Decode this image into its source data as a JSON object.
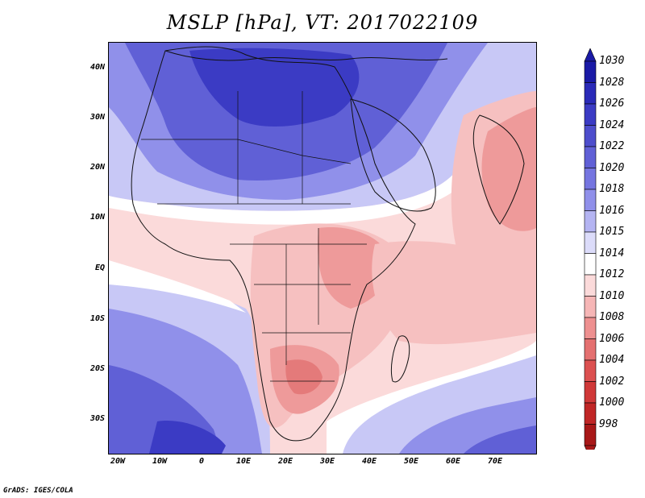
{
  "title": "MSLP [hPa], VT: 2017022109",
  "credit": "GrADS: IGES/COLA",
  "latitude_ticks": [
    "40N",
    "30N",
    "20N",
    "10N",
    "EQ",
    "10S",
    "20S",
    "30S"
  ],
  "longitude_ticks": [
    "20W",
    "10W",
    "0",
    "10E",
    "20E",
    "30E",
    "40E",
    "50E",
    "60E",
    "70E"
  ],
  "colorbar": {
    "levels": [
      "1030",
      "1028",
      "1026",
      "1024",
      "1022",
      "1020",
      "1018",
      "1016",
      "1015",
      "1014",
      "1012",
      "1010",
      "1008",
      "1006",
      "1004",
      "1002",
      "1000",
      "998"
    ],
    "colors": [
      "#1a1aa6",
      "#2a2ab8",
      "#3b3bc4",
      "#4d4dcc",
      "#6060d6",
      "#7575e0",
      "#9090ea",
      "#b4b4f2",
      "#dcdcfa",
      "#ffffff",
      "#fbdada",
      "#f6b6b6",
      "#ee9090",
      "#e47070",
      "#dc5050",
      "#d03838",
      "#c02626",
      "#a81818"
    ]
  },
  "field_colors": {
    "deep_blue": "#3b3bc4",
    "mid_blue": "#6060d6",
    "light_blue": "#9090ea",
    "pale_blue": "#c8c8f6",
    "white": "#ffffff",
    "pale_pink": "#fbdada",
    "light_pink": "#f6c0c0",
    "mid_pink": "#ee9a9a",
    "dark_pink": "#e47a7a"
  }
}
